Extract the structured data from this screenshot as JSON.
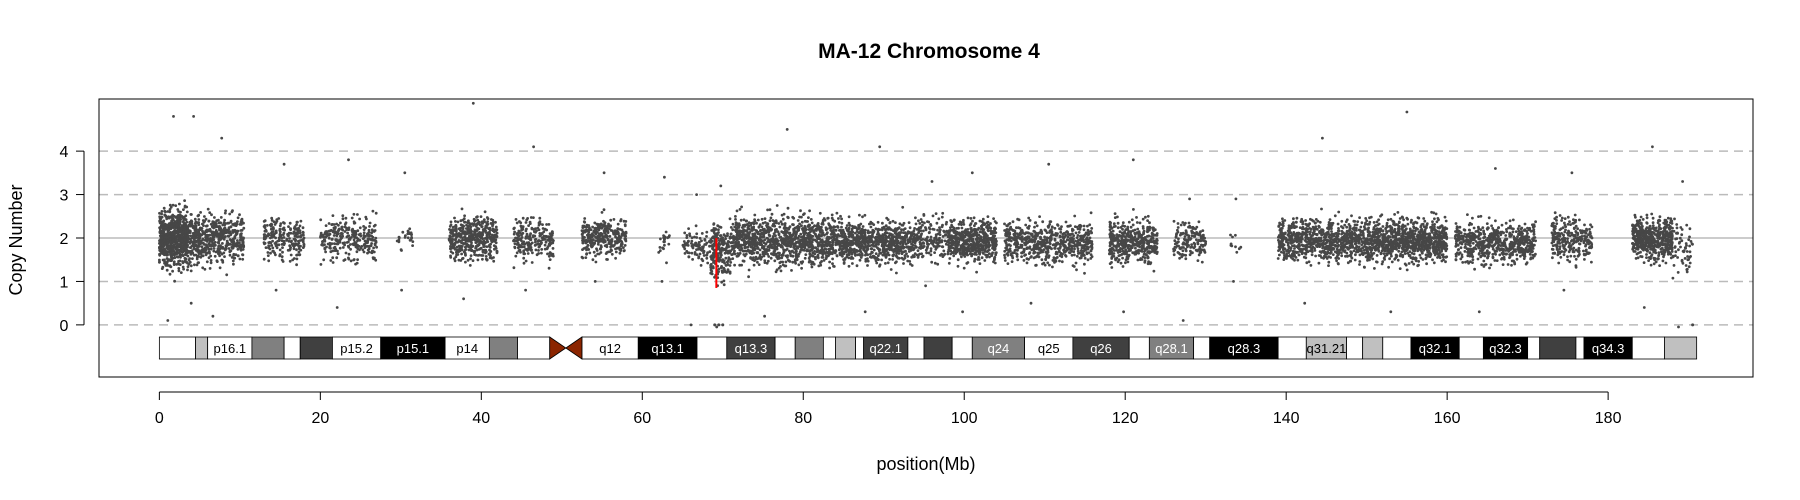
{
  "chart_data": {
    "type": "scatter",
    "title": "MA-12  Chromosome 4",
    "xlabel": "position(Mb)",
    "ylabel": "Copy Number",
    "xlim": [
      -7.5,
      198
    ],
    "ylim": [
      -1.2,
      5.2
    ],
    "x_ticks": [
      0,
      20,
      40,
      60,
      80,
      100,
      120,
      140,
      160,
      180
    ],
    "y_ticks": [
      0,
      1,
      2,
      3,
      4
    ],
    "dashed_reference_lines": [
      0,
      1,
      3,
      4
    ],
    "solid_reference_line": 2,
    "grid": false,
    "point_color": "#474747",
    "reference_color": "#bbbbbb",
    "segment_color": "#ff0000",
    "point_clusters": [
      {
        "x_start": 0.0,
        "x_end": 3.5,
        "y_center": 2.0,
        "spread": 0.55,
        "count": 700,
        "min": 0.1,
        "max": 4.8
      },
      {
        "x_start": 3.5,
        "x_end": 5.0,
        "y_center": 2.0,
        "spread": 0.5,
        "count": 160,
        "min": 0.5,
        "max": 4.8
      },
      {
        "x_start": 5.0,
        "x_end": 10.5,
        "y_center": 2.0,
        "spread": 0.45,
        "count": 420,
        "min": 0.2,
        "max": 4.3
      },
      {
        "x_start": 13.0,
        "x_end": 18.0,
        "y_center": 2.0,
        "spread": 0.4,
        "count": 220,
        "min": 0.8,
        "max": 3.7
      },
      {
        "x_start": 20.0,
        "x_end": 27.0,
        "y_center": 2.0,
        "spread": 0.4,
        "count": 280,
        "min": 0.4,
        "max": 3.8
      },
      {
        "x_start": 29.5,
        "x_end": 31.5,
        "y_center": 2.0,
        "spread": 0.3,
        "count": 25,
        "min": 0.8,
        "max": 3.5
      },
      {
        "x_start": 36.0,
        "x_end": 42.0,
        "y_center": 2.0,
        "spread": 0.4,
        "count": 450,
        "min": 0.6,
        "max": 5.1
      },
      {
        "x_start": 44.0,
        "x_end": 49.0,
        "y_center": 2.0,
        "spread": 0.4,
        "count": 230,
        "min": 0.8,
        "max": 4.1
      },
      {
        "x_start": 52.5,
        "x_end": 58.0,
        "y_center": 2.0,
        "spread": 0.35,
        "count": 320,
        "min": 1.0,
        "max": 3.5
      },
      {
        "x_start": 62.0,
        "x_end": 63.5,
        "y_center": 1.9,
        "spread": 0.3,
        "count": 20,
        "min": 1.0,
        "max": 3.4
      },
      {
        "x_start": 65.0,
        "x_end": 68.5,
        "y_center": 1.8,
        "spread": 0.35,
        "count": 90,
        "min": 0.0,
        "max": 3.0
      },
      {
        "x_start": 68.5,
        "x_end": 71.0,
        "y_center": 1.7,
        "spread": 0.5,
        "count": 220,
        "min": -0.05,
        "max": 3.2
      },
      {
        "x_start": 71.0,
        "x_end": 85.0,
        "y_center": 1.95,
        "spread": 0.45,
        "count": 1100,
        "min": 0.2,
        "max": 4.5
      },
      {
        "x_start": 85.0,
        "x_end": 94.0,
        "y_center": 1.9,
        "spread": 0.4,
        "count": 700,
        "min": 0.3,
        "max": 4.1
      },
      {
        "x_start": 94.0,
        "x_end": 98.0,
        "y_center": 2.0,
        "spread": 0.4,
        "count": 160,
        "min": 0.9,
        "max": 3.3
      },
      {
        "x_start": 98.0,
        "x_end": 104.0,
        "y_center": 1.95,
        "spread": 0.4,
        "count": 520,
        "min": 0.3,
        "max": 3.5
      },
      {
        "x_start": 105.0,
        "x_end": 116.0,
        "y_center": 1.9,
        "spread": 0.4,
        "count": 600,
        "min": 0.5,
        "max": 3.7
      },
      {
        "x_start": 118.0,
        "x_end": 124.0,
        "y_center": 1.9,
        "spread": 0.4,
        "count": 420,
        "min": 0.3,
        "max": 3.8
      },
      {
        "x_start": 126.0,
        "x_end": 130.0,
        "y_center": 1.95,
        "spread": 0.35,
        "count": 150,
        "min": 0.1,
        "max": 2.9
      },
      {
        "x_start": 133.0,
        "x_end": 134.5,
        "y_center": 1.9,
        "spread": 0.4,
        "count": 10,
        "min": 1.0,
        "max": 2.9
      },
      {
        "x_start": 139.0,
        "x_end": 150.0,
        "y_center": 1.95,
        "spread": 0.4,
        "count": 800,
        "min": 0.5,
        "max": 4.3
      },
      {
        "x_start": 150.0,
        "x_end": 160.0,
        "y_center": 1.95,
        "spread": 0.4,
        "count": 900,
        "min": 0.3,
        "max": 4.9
      },
      {
        "x_start": 161.0,
        "x_end": 171.0,
        "y_center": 1.9,
        "spread": 0.4,
        "count": 620,
        "min": 0.3,
        "max": 3.6
      },
      {
        "x_start": 173.0,
        "x_end": 178.0,
        "y_center": 1.95,
        "spread": 0.4,
        "count": 260,
        "min": 0.8,
        "max": 3.5
      },
      {
        "x_start": 183.0,
        "x_end": 188.0,
        "y_center": 2.0,
        "spread": 0.4,
        "count": 500,
        "min": 0.4,
        "max": 4.1
      },
      {
        "x_start": 188.0,
        "x_end": 190.5,
        "y_center": 1.8,
        "spread": 0.45,
        "count": 60,
        "min": -0.05,
        "max": 3.3
      }
    ],
    "segments": [
      {
        "x_start": 69.2,
        "x_end": 69.2,
        "y_start": 0.85,
        "y_end": 2.0
      }
    ],
    "zero_marks": [
      69.0,
      69.5,
      70.0,
      190.5
    ],
    "ideogram": {
      "centromere_color": "#8b2500",
      "centromere_center": 50.5,
      "centromere_halfwidth": 2.0,
      "bands": [
        {
          "start": 0.0,
          "end": 4.5,
          "stain": "gneg",
          "label": ""
        },
        {
          "start": 4.5,
          "end": 6.0,
          "stain": "gpos25",
          "label": ""
        },
        {
          "start": 6.0,
          "end": 11.5,
          "stain": "gneg",
          "label": "p16.1"
        },
        {
          "start": 11.5,
          "end": 15.5,
          "stain": "gpos50",
          "label": ""
        },
        {
          "start": 15.5,
          "end": 17.5,
          "stain": "gneg",
          "label": ""
        },
        {
          "start": 17.5,
          "end": 21.5,
          "stain": "gpos75",
          "label": ""
        },
        {
          "start": 21.5,
          "end": 27.5,
          "stain": "gneg",
          "label": "p15.2"
        },
        {
          "start": 27.5,
          "end": 35.5,
          "stain": "gpos100",
          "label": "p15.1"
        },
        {
          "start": 35.5,
          "end": 41.0,
          "stain": "gneg",
          "label": "p14"
        },
        {
          "start": 41.0,
          "end": 44.5,
          "stain": "gpos50",
          "label": ""
        },
        {
          "start": 44.5,
          "end": 48.5,
          "stain": "gneg",
          "label": ""
        },
        {
          "start": 52.5,
          "end": 59.5,
          "stain": "gneg",
          "label": "q12"
        },
        {
          "start": 59.5,
          "end": 66.8,
          "stain": "gpos100",
          "label": "q13.1"
        },
        {
          "start": 66.8,
          "end": 70.5,
          "stain": "gneg",
          "label": ""
        },
        {
          "start": 70.5,
          "end": 76.5,
          "stain": "gpos75",
          "label": "q13.3"
        },
        {
          "start": 76.5,
          "end": 79.0,
          "stain": "gneg",
          "label": ""
        },
        {
          "start": 79.0,
          "end": 82.5,
          "stain": "gpos50",
          "label": ""
        },
        {
          "start": 82.5,
          "end": 84.0,
          "stain": "gneg",
          "label": ""
        },
        {
          "start": 84.0,
          "end": 86.5,
          "stain": "gpos25",
          "label": ""
        },
        {
          "start": 86.5,
          "end": 87.5,
          "stain": "gneg",
          "label": ""
        },
        {
          "start": 87.5,
          "end": 93.0,
          "stain": "gpos75",
          "label": "q22.1"
        },
        {
          "start": 93.0,
          "end": 95.0,
          "stain": "gneg",
          "label": ""
        },
        {
          "start": 95.0,
          "end": 98.5,
          "stain": "gpos75",
          "label": ""
        },
        {
          "start": 98.5,
          "end": 101.0,
          "stain": "gneg",
          "label": ""
        },
        {
          "start": 101.0,
          "end": 107.5,
          "stain": "gpos50",
          "label": "q24"
        },
        {
          "start": 107.5,
          "end": 113.5,
          "stain": "gneg",
          "label": "q25"
        },
        {
          "start": 113.5,
          "end": 120.5,
          "stain": "gpos75",
          "label": "q26"
        },
        {
          "start": 120.5,
          "end": 123.0,
          "stain": "gneg",
          "label": ""
        },
        {
          "start": 123.0,
          "end": 128.5,
          "stain": "gpos50",
          "label": "q28.1"
        },
        {
          "start": 128.5,
          "end": 130.5,
          "stain": "gneg",
          "label": ""
        },
        {
          "start": 130.5,
          "end": 139.0,
          "stain": "gpos100",
          "label": "q28.3"
        },
        {
          "start": 139.0,
          "end": 142.5,
          "stain": "gneg",
          "label": ""
        },
        {
          "start": 142.5,
          "end": 147.5,
          "stain": "gpos25",
          "label": "q31.21"
        },
        {
          "start": 147.5,
          "end": 149.5,
          "stain": "gneg",
          "label": ""
        },
        {
          "start": 149.5,
          "end": 152.0,
          "stain": "gpos25",
          "label": ""
        },
        {
          "start": 152.0,
          "end": 155.5,
          "stain": "gneg",
          "label": ""
        },
        {
          "start": 155.5,
          "end": 161.5,
          "stain": "gpos100",
          "label": "q32.1"
        },
        {
          "start": 161.5,
          "end": 164.5,
          "stain": "gneg",
          "label": ""
        },
        {
          "start": 164.5,
          "end": 170.0,
          "stain": "gpos100",
          "label": "q32.3"
        },
        {
          "start": 170.0,
          "end": 171.5,
          "stain": "gneg",
          "label": ""
        },
        {
          "start": 171.5,
          "end": 176.0,
          "stain": "gpos75",
          "label": ""
        },
        {
          "start": 176.0,
          "end": 177.0,
          "stain": "gneg",
          "label": ""
        },
        {
          "start": 177.0,
          "end": 183.0,
          "stain": "gpos100",
          "label": "q34.3"
        },
        {
          "start": 183.0,
          "end": 187.0,
          "stain": "gneg",
          "label": ""
        },
        {
          "start": 187.0,
          "end": 191.0,
          "stain": "gpos25",
          "label": ""
        }
      ]
    }
  }
}
